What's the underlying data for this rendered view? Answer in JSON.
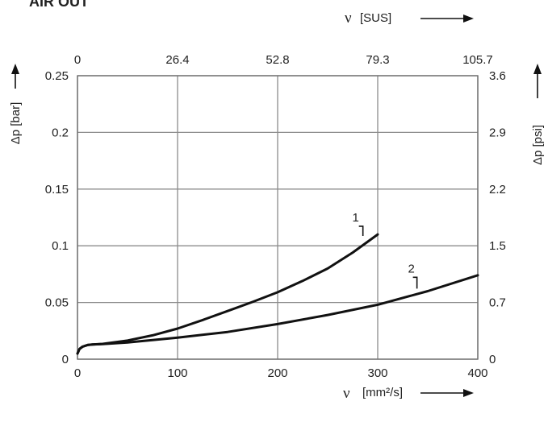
{
  "chart_data": {
    "type": "line",
    "title": "AIR OUT",
    "x": {
      "label_symbol": "ν",
      "label_unit": "[mm²/s]",
      "range": [
        0,
        400
      ],
      "ticks": [
        0,
        100,
        200,
        300,
        400
      ],
      "tick_labels": [
        "0",
        "100",
        "200",
        "300",
        "400"
      ]
    },
    "x2": {
      "label_symbol": "ν",
      "label_unit": "[SUS]",
      "tick_labels": [
        "0",
        "26.4",
        "52.8",
        "79.3",
        "105.7"
      ]
    },
    "y": {
      "label": "Δp [bar]",
      "range": [
        0,
        0.25
      ],
      "ticks": [
        0,
        0.05,
        0.1,
        0.15,
        0.2,
        0.25
      ],
      "tick_labels": [
        "0",
        "0.05",
        "0.1",
        "0.15",
        "0.2",
        "0.25"
      ]
    },
    "y2": {
      "label": "Δp [psi]",
      "tick_labels": [
        "0",
        "0.7",
        "1.5",
        "2.2",
        "2.9",
        "3.6"
      ]
    },
    "grid": true,
    "series": [
      {
        "name": "1",
        "x": [
          0,
          2,
          5,
          10,
          15,
          25,
          50,
          75,
          100,
          125,
          150,
          175,
          200,
          225,
          250,
          275,
          300
        ],
        "y": [
          0.005,
          0.009,
          0.011,
          0.0125,
          0.013,
          0.0135,
          0.0165,
          0.021,
          0.027,
          0.0345,
          0.0425,
          0.0505,
          0.059,
          0.069,
          0.08,
          0.094,
          0.11
        ]
      },
      {
        "name": "2",
        "x": [
          0,
          2,
          5,
          10,
          15,
          25,
          50,
          100,
          150,
          200,
          250,
          300,
          350,
          400
        ],
        "y": [
          0.005,
          0.009,
          0.011,
          0.0125,
          0.013,
          0.0133,
          0.0148,
          0.019,
          0.024,
          0.031,
          0.039,
          0.048,
          0.06,
          0.074
        ]
      }
    ]
  }
}
